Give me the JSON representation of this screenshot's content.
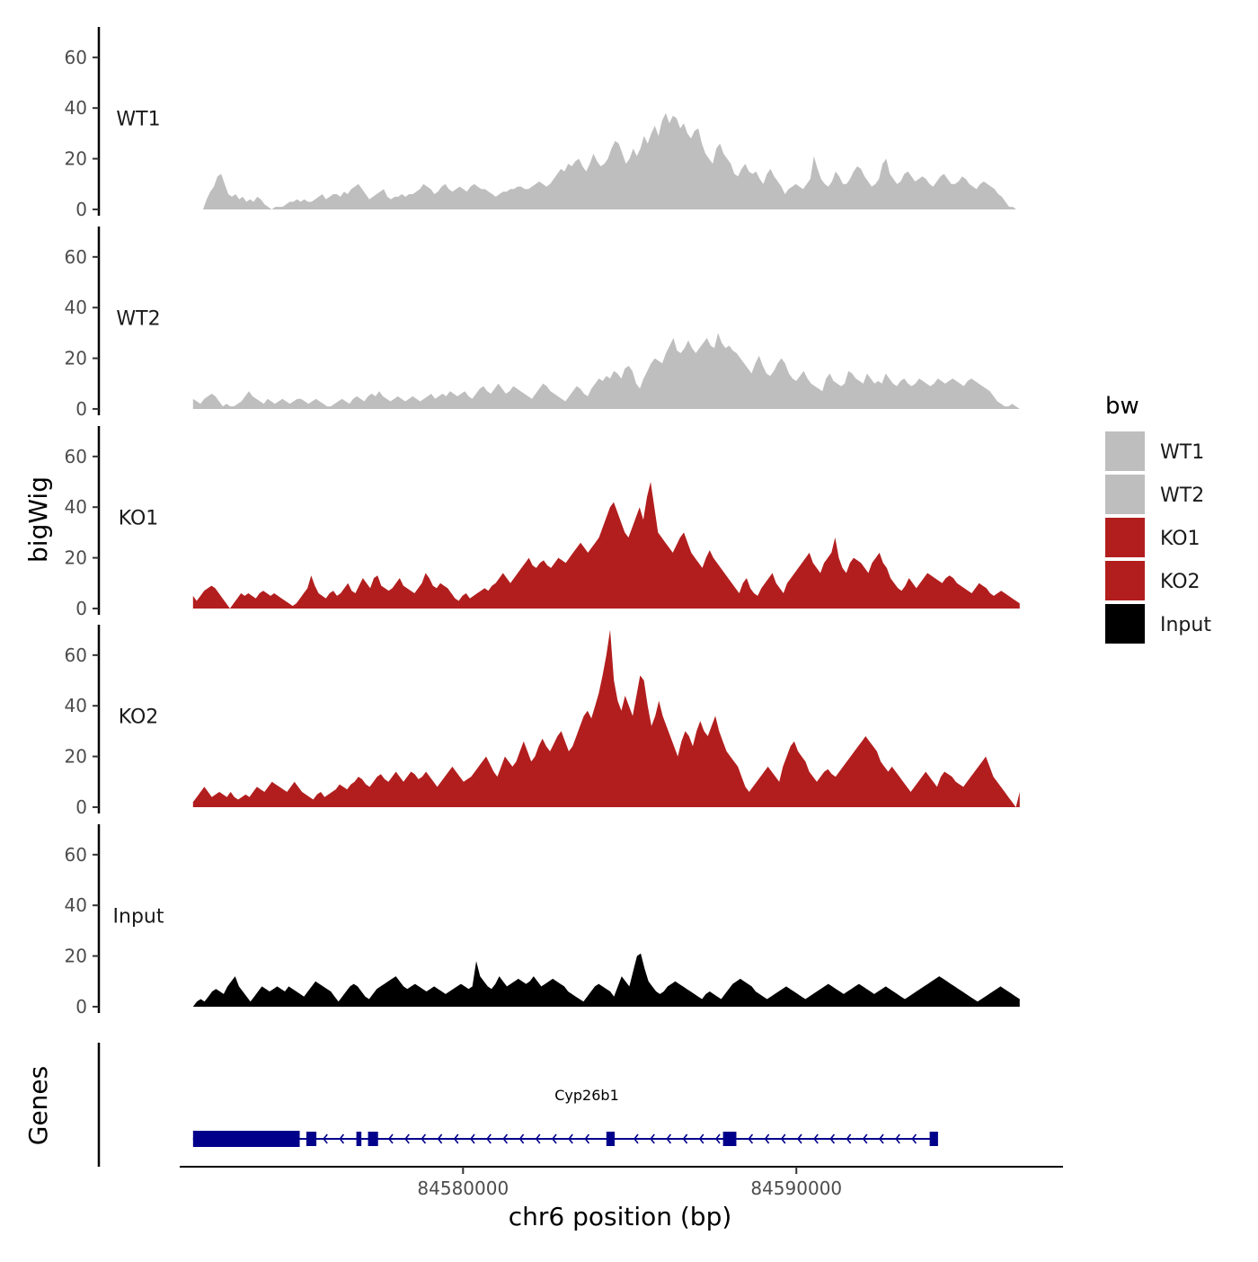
{
  "chart_data": {
    "type": "area",
    "title": "",
    "xlabel": "chr6 position (bp)",
    "ylabel": "bigWig",
    "gene_track_label": "Genes",
    "xlim": [
      84571500,
      84598000
    ],
    "x_ticks": [
      {
        "value": 84580000,
        "label": "84580000"
      },
      {
        "value": 84590000,
        "label": "84590000"
      }
    ],
    "ylim": [
      0,
      72
    ],
    "y_ticks": [
      {
        "value": 0,
        "label": "0"
      },
      {
        "value": 20,
        "label": "20"
      },
      {
        "value": 40,
        "label": "40"
      },
      {
        "value": 60,
        "label": "60"
      }
    ],
    "legend": {
      "title": "bw",
      "position": "right",
      "entries": [
        {
          "label": "WT1",
          "color": "#bebebe"
        },
        {
          "label": "WT2",
          "color": "#bebebe"
        },
        {
          "label": "KO1",
          "color": "#b21e1e"
        },
        {
          "label": "KO2",
          "color": "#b21e1e"
        },
        {
          "label": "Input",
          "color": "#000000"
        }
      ]
    },
    "series": [
      {
        "name": "WT1",
        "color": "#bebebe",
        "x_start": 84572200,
        "x_end": 84596600,
        "values": [
          0,
          4,
          7,
          9,
          13,
          14,
          10,
          6,
          5,
          6,
          4,
          5,
          3,
          4,
          3,
          5,
          4,
          2,
          1,
          0,
          1,
          1,
          1,
          2,
          3,
          3,
          4,
          3,
          4,
          3,
          3,
          4,
          5,
          6,
          4,
          5,
          6,
          6,
          5,
          7,
          6,
          8,
          9,
          10,
          8,
          6,
          4,
          5,
          6,
          7,
          8,
          5,
          4,
          5,
          5,
          6,
          5,
          6,
          6,
          7,
          8,
          10,
          9,
          8,
          6,
          7,
          9,
          10,
          8,
          7,
          8,
          9,
          8,
          7,
          9,
          10,
          9,
          8,
          8,
          7,
          6,
          5,
          6,
          7,
          7,
          8,
          8,
          9,
          9,
          8,
          8,
          9,
          10,
          11,
          10,
          9,
          10,
          12,
          14,
          16,
          15,
          18,
          17,
          19,
          20,
          17,
          15,
          18,
          22,
          19,
          17,
          18,
          20,
          24,
          27,
          26,
          22,
          18,
          20,
          24,
          21,
          24,
          29,
          26,
          30,
          33,
          29,
          35,
          38,
          34,
          37,
          36,
          32,
          34,
          30,
          28,
          31,
          32,
          26,
          22,
          20,
          18,
          24,
          26,
          22,
          20,
          18,
          14,
          13,
          16,
          18,
          15,
          14,
          15,
          12,
          10,
          14,
          16,
          13,
          11,
          9,
          6,
          8,
          9,
          10,
          9,
          8,
          10,
          12,
          21,
          16,
          12,
          10,
          9,
          11,
          15,
          13,
          10,
          10,
          12,
          15,
          17,
          16,
          13,
          11,
          9,
          10,
          12,
          18,
          20,
          14,
          12,
          10,
          11,
          14,
          15,
          13,
          11,
          12,
          13,
          12,
          10,
          9,
          11,
          13,
          14,
          12,
          10,
          10,
          11,
          13,
          12,
          10,
          9,
          8,
          10,
          11,
          10,
          9,
          8,
          6,
          5,
          3,
          1,
          1,
          0
        ]
      },
      {
        "name": "WT2",
        "color": "#bebebe",
        "x_start": 84571900,
        "x_end": 84596700,
        "values": [
          4,
          3,
          2,
          4,
          5,
          6,
          5,
          3,
          1,
          2,
          1,
          1,
          2,
          3,
          5,
          7,
          5,
          4,
          3,
          2,
          4,
          3,
          2,
          3,
          4,
          3,
          2,
          3,
          4,
          4,
          3,
          2,
          3,
          4,
          3,
          2,
          1,
          1,
          2,
          3,
          4,
          3,
          2,
          4,
          5,
          4,
          3,
          5,
          6,
          5,
          7,
          5,
          4,
          3,
          4,
          5,
          4,
          3,
          4,
          5,
          4,
          3,
          4,
          5,
          6,
          4,
          5,
          6,
          5,
          7,
          6,
          5,
          6,
          7,
          5,
          4,
          6,
          8,
          9,
          7,
          6,
          8,
          10,
          8,
          6,
          7,
          9,
          8,
          7,
          6,
          5,
          4,
          6,
          8,
          10,
          9,
          7,
          6,
          5,
          4,
          3,
          5,
          7,
          9,
          8,
          6,
          5,
          8,
          10,
          12,
          11,
          13,
          12,
          15,
          14,
          12,
          16,
          17,
          15,
          10,
          8,
          12,
          15,
          18,
          20,
          19,
          18,
          22,
          25,
          28,
          23,
          22,
          24,
          27,
          24,
          22,
          24,
          26,
          28,
          25,
          24,
          30,
          26,
          24,
          25,
          23,
          22,
          20,
          18,
          16,
          14,
          18,
          21,
          17,
          14,
          13,
          15,
          18,
          20,
          18,
          14,
          12,
          11,
          13,
          15,
          12,
          10,
          9,
          8,
          7,
          12,
          14,
          11,
          10,
          9,
          10,
          15,
          14,
          12,
          11,
          10,
          14,
          12,
          10,
          11,
          10,
          14,
          12,
          10,
          9,
          11,
          12,
          10,
          9,
          10,
          12,
          11,
          10,
          9,
          10,
          12,
          11,
          10,
          11,
          12,
          11,
          10,
          9,
          11,
          12,
          11,
          10,
          9,
          8,
          7,
          5,
          3,
          2,
          1,
          1,
          2,
          1,
          0
        ]
      },
      {
        "name": "KO1",
        "color": "#b21e1e",
        "x_start": 84571900,
        "x_end": 84596700,
        "values": [
          5,
          3,
          5,
          7,
          8,
          9,
          8,
          6,
          4,
          2,
          0,
          2,
          4,
          6,
          5,
          6,
          5,
          4,
          6,
          7,
          6,
          5,
          6,
          5,
          4,
          3,
          2,
          1,
          2,
          4,
          6,
          8,
          13,
          9,
          6,
          5,
          4,
          6,
          7,
          5,
          6,
          8,
          10,
          7,
          6,
          9,
          12,
          10,
          8,
          12,
          13,
          9,
          8,
          7,
          8,
          10,
          12,
          9,
          8,
          7,
          6,
          8,
          10,
          14,
          12,
          9,
          8,
          10,
          9,
          8,
          6,
          4,
          3,
          5,
          6,
          4,
          5,
          6,
          7,
          8,
          7,
          9,
          10,
          12,
          14,
          12,
          10,
          12,
          14,
          16,
          18,
          20,
          17,
          16,
          18,
          19,
          17,
          16,
          18,
          20,
          19,
          18,
          20,
          22,
          24,
          26,
          24,
          22,
          24,
          26,
          28,
          32,
          36,
          40,
          42,
          38,
          34,
          30,
          28,
          32,
          36,
          40,
          35,
          44,
          50,
          40,
          30,
          28,
          26,
          24,
          22,
          25,
          28,
          30,
          26,
          22,
          20,
          18,
          16,
          20,
          23,
          20,
          18,
          16,
          14,
          12,
          10,
          8,
          6,
          10,
          12,
          8,
          6,
          5,
          8,
          10,
          12,
          14,
          10,
          8,
          6,
          10,
          12,
          14,
          16,
          18,
          20,
          22,
          18,
          16,
          14,
          18,
          20,
          22,
          28,
          20,
          16,
          14,
          18,
          20,
          19,
          18,
          16,
          14,
          18,
          20,
          22,
          18,
          16,
          12,
          10,
          8,
          7,
          9,
          12,
          10,
          8,
          10,
          12,
          14,
          13,
          12,
          11,
          10,
          12,
          13,
          12,
          10,
          9,
          8,
          7,
          6,
          8,
          10,
          9,
          8,
          6,
          5,
          6,
          7,
          6,
          5,
          4,
          3,
          2
        ]
      },
      {
        "name": "KO2",
        "color": "#b21e1e",
        "x_start": 84571900,
        "x_end": 84596700,
        "values": [
          2,
          4,
          6,
          8,
          6,
          4,
          5,
          6,
          5,
          4,
          6,
          4,
          3,
          4,
          5,
          4,
          6,
          8,
          7,
          6,
          8,
          10,
          9,
          8,
          7,
          6,
          8,
          10,
          8,
          6,
          5,
          4,
          3,
          5,
          6,
          4,
          5,
          6,
          7,
          9,
          8,
          7,
          9,
          10,
          12,
          11,
          9,
          8,
          10,
          12,
          13,
          11,
          10,
          12,
          14,
          12,
          10,
          12,
          14,
          13,
          11,
          12,
          14,
          12,
          10,
          8,
          10,
          12,
          14,
          16,
          14,
          12,
          10,
          11,
          12,
          14,
          16,
          18,
          20,
          17,
          14,
          12,
          16,
          20,
          18,
          16,
          18,
          22,
          26,
          22,
          18,
          20,
          24,
          27,
          24,
          22,
          25,
          28,
          30,
          26,
          22,
          24,
          28,
          32,
          36,
          38,
          35,
          40,
          45,
          52,
          60,
          70,
          50,
          42,
          38,
          44,
          40,
          36,
          44,
          52,
          50,
          40,
          32,
          36,
          42,
          36,
          32,
          28,
          24,
          20,
          26,
          30,
          28,
          24,
          30,
          34,
          30,
          28,
          32,
          36,
          30,
          26,
          22,
          20,
          18,
          16,
          12,
          8,
          6,
          8,
          10,
          12,
          14,
          16,
          14,
          12,
          10,
          16,
          20,
          24,
          26,
          22,
          20,
          18,
          14,
          12,
          10,
          12,
          14,
          15,
          13,
          12,
          14,
          16,
          18,
          20,
          22,
          24,
          26,
          28,
          26,
          24,
          22,
          18,
          16,
          14,
          16,
          14,
          12,
          10,
          8,
          6,
          8,
          10,
          12,
          14,
          12,
          10,
          8,
          12,
          14,
          13,
          12,
          10,
          9,
          8,
          10,
          12,
          14,
          16,
          18,
          20,
          16,
          12,
          10,
          8,
          6,
          4,
          2,
          0,
          6
        ]
      },
      {
        "name": "Input",
        "color": "#000000",
        "x_start": 84571900,
        "x_end": 84596700,
        "values": [
          0,
          2,
          3,
          2,
          4,
          6,
          7,
          6,
          5,
          8,
          10,
          12,
          8,
          6,
          4,
          2,
          4,
          6,
          8,
          7,
          6,
          7,
          8,
          7,
          6,
          8,
          7,
          6,
          5,
          4,
          6,
          8,
          10,
          9,
          8,
          7,
          6,
          4,
          2,
          4,
          6,
          8,
          9,
          8,
          6,
          4,
          3,
          5,
          7,
          8,
          9,
          10,
          11,
          12,
          10,
          8,
          7,
          8,
          9,
          8,
          7,
          6,
          7,
          8,
          7,
          6,
          5,
          6,
          7,
          8,
          9,
          8,
          7,
          8,
          18,
          12,
          10,
          8,
          7,
          9,
          12,
          10,
          8,
          9,
          10,
          11,
          10,
          9,
          10,
          12,
          10,
          8,
          9,
          10,
          11,
          10,
          9,
          8,
          6,
          5,
          4,
          3,
          2,
          4,
          6,
          8,
          9,
          8,
          7,
          6,
          4,
          8,
          12,
          10,
          8,
          14,
          20,
          21,
          15,
          10,
          8,
          6,
          5,
          6,
          8,
          9,
          10,
          9,
          8,
          7,
          6,
          5,
          4,
          3,
          5,
          6,
          5,
          4,
          3,
          5,
          7,
          9,
          10,
          11,
          10,
          9,
          8,
          6,
          5,
          4,
          3,
          4,
          5,
          6,
          7,
          8,
          7,
          6,
          5,
          4,
          3,
          4,
          5,
          6,
          7,
          8,
          9,
          8,
          7,
          6,
          5,
          6,
          7,
          8,
          9,
          8,
          7,
          6,
          5,
          6,
          7,
          8,
          7,
          6,
          5,
          4,
          3,
          4,
          5,
          6,
          7,
          8,
          9,
          10,
          11,
          12,
          11,
          10,
          9,
          8,
          7,
          6,
          5,
          4,
          3,
          2,
          3,
          4,
          5,
          6,
          7,
          8,
          7,
          6,
          5,
          4,
          3
        ]
      }
    ],
    "genes": [
      {
        "name": "Cyp26b1",
        "color": "#00008b",
        "tx_start": 84571900,
        "tx_end": 84594200,
        "strand": "-",
        "exons": [
          {
            "start": 84571900,
            "end": 84575100,
            "type": "utr"
          },
          {
            "start": 84575300,
            "end": 84575600,
            "type": "cds"
          },
          {
            "start": 84576800,
            "end": 84576950,
            "type": "cds"
          },
          {
            "start": 84577150,
            "end": 84577450,
            "type": "cds"
          },
          {
            "start": 84584300,
            "end": 84584550,
            "type": "cds"
          },
          {
            "start": 84587800,
            "end": 84588200,
            "type": "cds"
          },
          {
            "start": 84594000,
            "end": 84594250,
            "type": "cds"
          }
        ]
      }
    ]
  }
}
